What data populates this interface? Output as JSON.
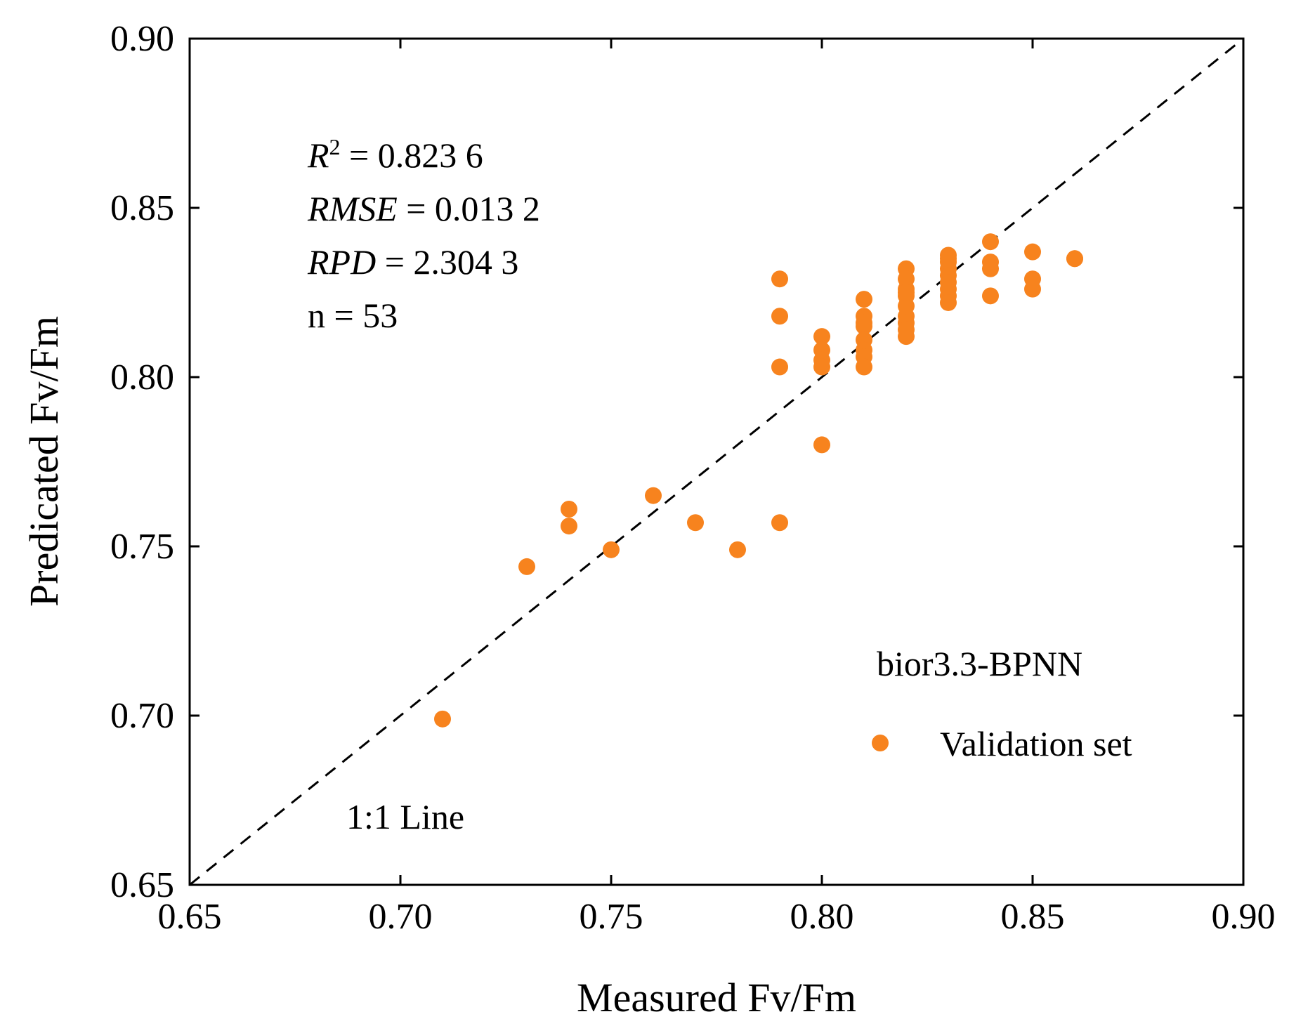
{
  "chart_data": {
    "type": "scatter",
    "xlabel": "Measured Fv/Fm",
    "ylabel": "Predicated Fv/Fm",
    "xlim": [
      0.65,
      0.9
    ],
    "ylim": [
      0.65,
      0.9
    ],
    "xticks": [
      "0.65",
      "0.70",
      "0.75",
      "0.80",
      "0.85",
      "0.90"
    ],
    "yticks": [
      "0.65",
      "0.70",
      "0.75",
      "0.80",
      "0.85",
      "0.90"
    ],
    "grid": false,
    "reference_line": {
      "label": "1:1 Line",
      "from": [
        0.65,
        0.65
      ],
      "to": [
        0.9,
        0.9
      ],
      "style": "dashed"
    },
    "stats": {
      "r2_label": "R",
      "r2_sup": "2",
      "r2_value": " = 0.823 6",
      "rmse_label": "RMSE",
      "rmse_value": " = 0.013 2",
      "rpd_label": "RPD",
      "rpd_value": " = 2.304 3",
      "n_text": "n = 53"
    },
    "model_label": "bior3.3-BPNN",
    "legend_position": "bottom-right",
    "series": [
      {
        "name": "Validation set",
        "color": "#F7831E",
        "points": [
          [
            0.71,
            0.699
          ],
          [
            0.73,
            0.744
          ],
          [
            0.74,
            0.761
          ],
          [
            0.74,
            0.756
          ],
          [
            0.75,
            0.749
          ],
          [
            0.76,
            0.765
          ],
          [
            0.77,
            0.757
          ],
          [
            0.78,
            0.749
          ],
          [
            0.79,
            0.829
          ],
          [
            0.79,
            0.818
          ],
          [
            0.79,
            0.803
          ],
          [
            0.79,
            0.757
          ],
          [
            0.8,
            0.812
          ],
          [
            0.8,
            0.808
          ],
          [
            0.8,
            0.805
          ],
          [
            0.8,
            0.803
          ],
          [
            0.8,
            0.78
          ],
          [
            0.81,
            0.823
          ],
          [
            0.81,
            0.818
          ],
          [
            0.81,
            0.815
          ],
          [
            0.81,
            0.811
          ],
          [
            0.81,
            0.808
          ],
          [
            0.81,
            0.806
          ],
          [
            0.81,
            0.803
          ],
          [
            0.82,
            0.832
          ],
          [
            0.82,
            0.829
          ],
          [
            0.82,
            0.826
          ],
          [
            0.82,
            0.824
          ],
          [
            0.82,
            0.821
          ],
          [
            0.82,
            0.818
          ],
          [
            0.82,
            0.816
          ],
          [
            0.82,
            0.814
          ],
          [
            0.82,
            0.812
          ],
          [
            0.83,
            0.836
          ],
          [
            0.83,
            0.834
          ],
          [
            0.83,
            0.832
          ],
          [
            0.83,
            0.83
          ],
          [
            0.83,
            0.828
          ],
          [
            0.83,
            0.826
          ],
          [
            0.83,
            0.824
          ],
          [
            0.83,
            0.822
          ],
          [
            0.84,
            0.84
          ],
          [
            0.84,
            0.834
          ],
          [
            0.84,
            0.832
          ],
          [
            0.84,
            0.824
          ],
          [
            0.85,
            0.837
          ],
          [
            0.85,
            0.829
          ],
          [
            0.85,
            0.826
          ],
          [
            0.86,
            0.835
          ],
          [
            0.86,
            0.835
          ],
          [
            0.83,
            0.835
          ],
          [
            0.82,
            0.825
          ],
          [
            0.81,
            0.816
          ]
        ]
      }
    ]
  }
}
